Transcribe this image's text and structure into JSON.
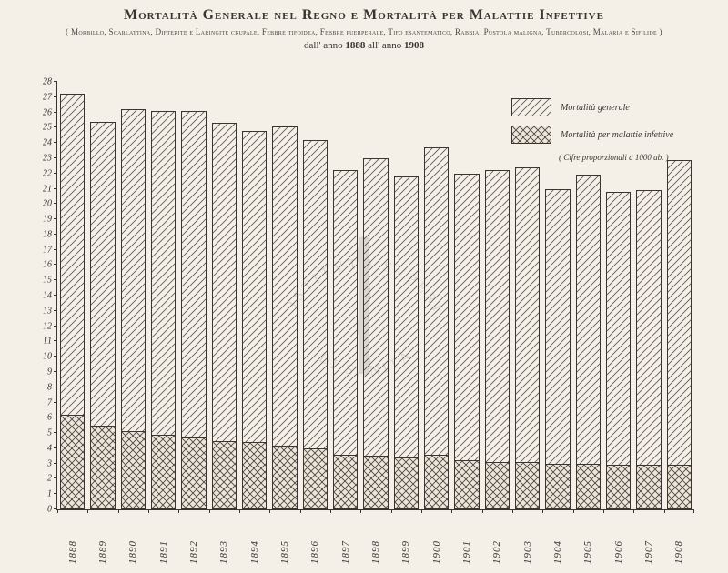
{
  "title": "Mortalità Generale nel Regno e Mortalità per Malattie Infettive",
  "subtitle": "( Morbillo, Scarlattina, Difterite e Laringite crupale, Febbre tifoidea, Febbre puerperale, Tifo esantematico, Rabbia, Pustola maligna, Tubercolosi, Malaria e Sifilide )",
  "date_range_prefix": "dall' anno ",
  "date_range_mid": " all' anno ",
  "year_start": "1888",
  "year_end": "1908",
  "legend": {
    "general": "Mortalità generale",
    "infective": "Mortalità per malattie infettive",
    "note": "( Cifre proporzionali a 1000 ab. )"
  },
  "chart": {
    "type": "bar",
    "ylim": [
      0,
      28
    ],
    "yticks": [
      0,
      1,
      2,
      3,
      4,
      5,
      6,
      7,
      22,
      23,
      24,
      25,
      26,
      27,
      28
    ],
    "full_ticks": [
      0,
      1,
      2,
      3,
      4,
      5,
      6,
      7,
      8,
      9,
      10,
      11,
      12,
      13,
      14,
      15,
      16,
      17,
      18,
      19,
      20,
      21,
      22,
      23,
      24,
      25,
      26,
      27,
      28
    ],
    "years": [
      "1888",
      "1889",
      "1890",
      "1891",
      "1892",
      "1893",
      "1894",
      "1895",
      "1896",
      "1897",
      "1898",
      "1899",
      "1900",
      "1901",
      "1902",
      "1903",
      "1904",
      "1905",
      "1906",
      "1907",
      "1908"
    ],
    "general": [
      27.2,
      25.4,
      26.2,
      26.1,
      26.1,
      25.3,
      24.8,
      25.1,
      24.2,
      22.2,
      23.0,
      21.8,
      23.7,
      22.0,
      22.2,
      22.4,
      21.0,
      21.9,
      20.8,
      20.9,
      22.9
    ],
    "infective": [
      6.1,
      5.4,
      5.0,
      4.8,
      4.6,
      4.4,
      4.3,
      4.1,
      3.9,
      3.5,
      3.4,
      3.3,
      3.5,
      3.1,
      3.0,
      3.0,
      2.9,
      2.9,
      2.8,
      2.8,
      2.8
    ],
    "colors": {
      "general_hatch": "#5a5550",
      "infective_hatch": "#4a4540",
      "border": "#3a3530",
      "background": "#f4f0e8"
    },
    "bar_width_ratio": 0.82,
    "title_fontsize": 16,
    "label_fontsize": 10
  },
  "watermark": "ISTITVTO SVPERIORE DI SANITÀ"
}
